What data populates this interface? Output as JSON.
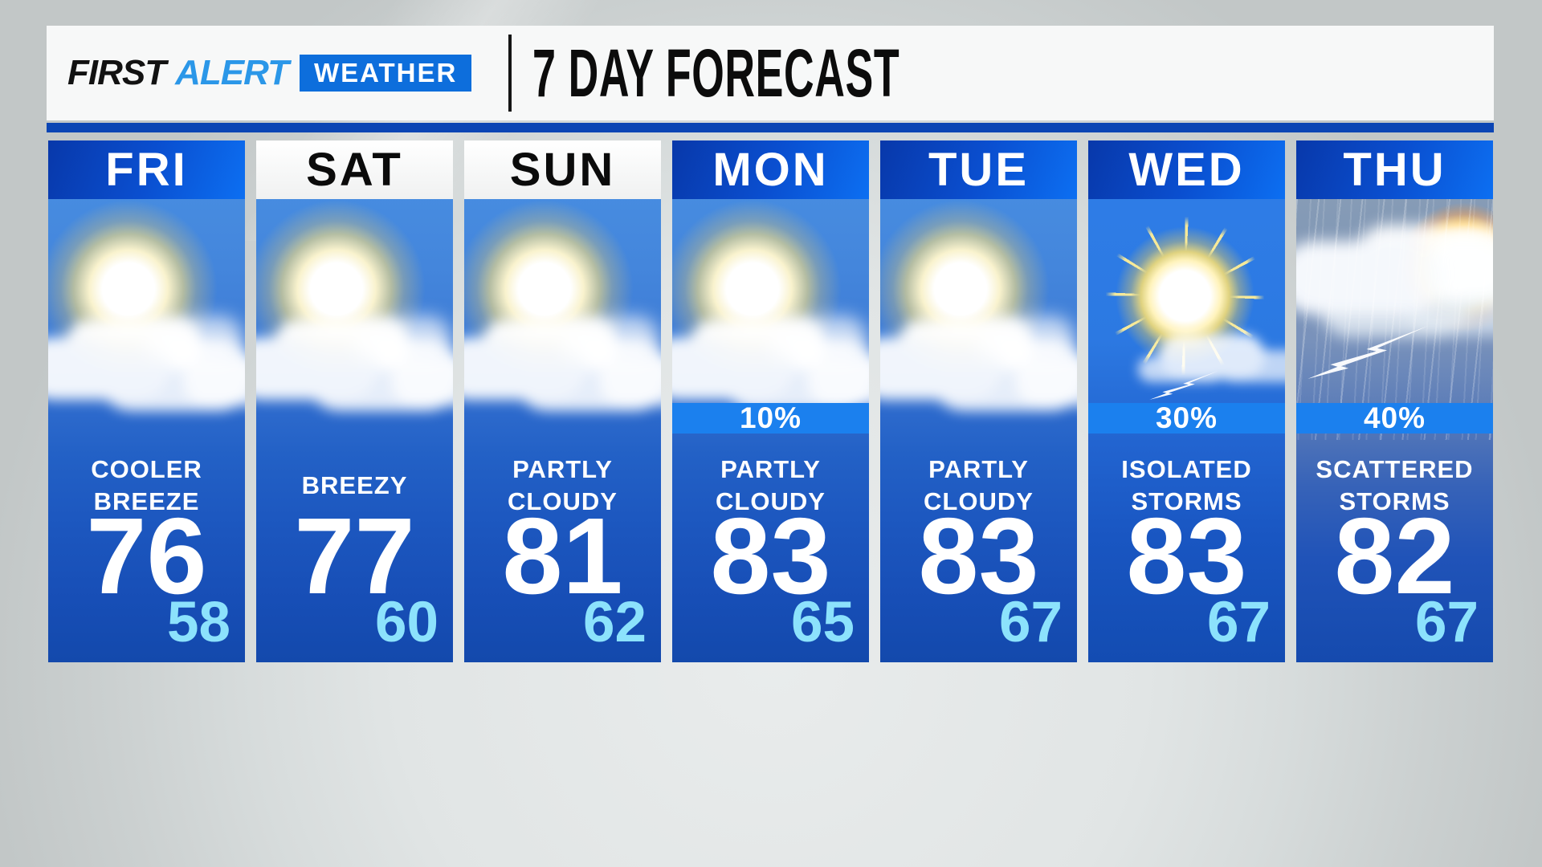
{
  "header": {
    "brand_first": "FIRST",
    "brand_alert": "ALERT",
    "brand_weather": "WEATHER",
    "title": "7 DAY FORECAST"
  },
  "colors": {
    "brand_alert_blue": "#2b97e8",
    "brand_box_blue": "#0d6edc",
    "header_rule_blue": "#0b45b4",
    "day_header_blue_dark": "#0838aa",
    "day_header_blue_bright": "#0c6ff2",
    "precip_bar_blue": "#1b80ee",
    "low_temp_blue": "#8ce2fc",
    "column_blue_bottom": "#1349ac",
    "background_gray": "#d7dbdb"
  },
  "days": [
    {
      "label": "FRI",
      "weekend": false,
      "icon": "sun-behind-cloud",
      "precip": null,
      "condition_line1": "COOLER",
      "condition_line2": "BREEZE",
      "high": "76",
      "low": "58"
    },
    {
      "label": "SAT",
      "weekend": true,
      "icon": "sun-behind-cloud",
      "precip": null,
      "condition_line1": "BREEZY",
      "condition_line2": "",
      "high": "77",
      "low": "60"
    },
    {
      "label": "SUN",
      "weekend": true,
      "icon": "sun-behind-cloud",
      "precip": null,
      "condition_line1": "PARTLY",
      "condition_line2": "CLOUDY",
      "high": "81",
      "low": "62"
    },
    {
      "label": "MON",
      "weekend": false,
      "icon": "sun-behind-cloud",
      "precip": "10%",
      "condition_line1": "PARTLY",
      "condition_line2": "CLOUDY",
      "high": "83",
      "low": "65"
    },
    {
      "label": "TUE",
      "weekend": false,
      "icon": "sun-behind-cloud",
      "precip": null,
      "condition_line1": "PARTLY",
      "condition_line2": "CLOUDY",
      "high": "83",
      "low": "67"
    },
    {
      "label": "WED",
      "weekend": false,
      "icon": "sun-rays-storm-cloud",
      "precip": "30%",
      "condition_line1": "ISOLATED",
      "condition_line2": "STORMS",
      "high": "83",
      "low": "67"
    },
    {
      "label": "THU",
      "weekend": false,
      "icon": "storm-cloud-rain-lightning-sun",
      "precip": "40%",
      "condition_line1": "SCATTERED",
      "condition_line2": "STORMS",
      "high": "82",
      "low": "67"
    }
  ]
}
